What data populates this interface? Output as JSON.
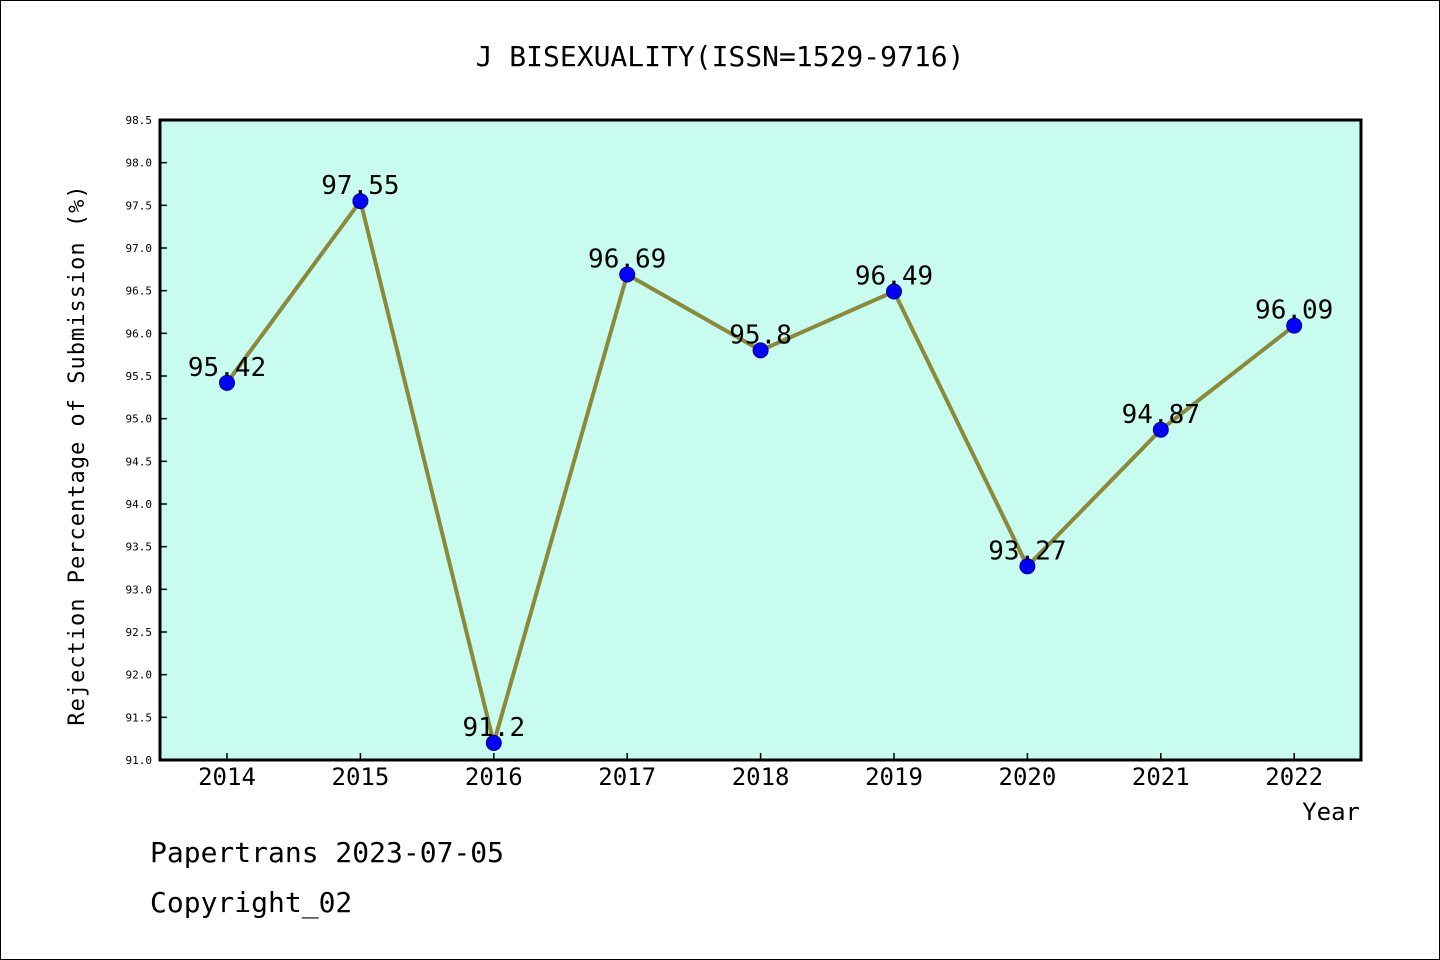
{
  "chart_data": {
    "type": "line",
    "title": "J BISEXUALITY(ISSN=1529-9716)",
    "xlabel": "Year",
    "ylabel": "Rejection Percentage of Submission (%)",
    "categories": [
      "2014",
      "2015",
      "2016",
      "2017",
      "2018",
      "2019",
      "2020",
      "2021",
      "2022"
    ],
    "series": [
      {
        "values": [
          95.42,
          97.55,
          91.2,
          96.69,
          95.8,
          96.49,
          93.27,
          94.87,
          96.09
        ],
        "labels": [
          "95.42",
          "97.55",
          "91.2",
          "96.69",
          "95.8",
          "96.49",
          "93.27",
          "94.87",
          "96.09"
        ]
      }
    ],
    "ylim": [
      91.0,
      98.5
    ],
    "yticks": [
      "91.0",
      "91.5",
      "92.0",
      "92.5",
      "93.0",
      "93.5",
      "94.0",
      "94.5",
      "95.0",
      "95.5",
      "96.0",
      "96.5",
      "97.0",
      "97.5",
      "98.0",
      "98.5"
    ],
    "grid": false,
    "legend": "none",
    "colors": {
      "plot_background": "#c8fcee",
      "line": "#8b8a3a",
      "marker": "#0000ff",
      "marker_edge": "#00008b"
    }
  },
  "footer": {
    "line1": "Papertrans 2023-07-05",
    "line2": "Copyright_02"
  }
}
